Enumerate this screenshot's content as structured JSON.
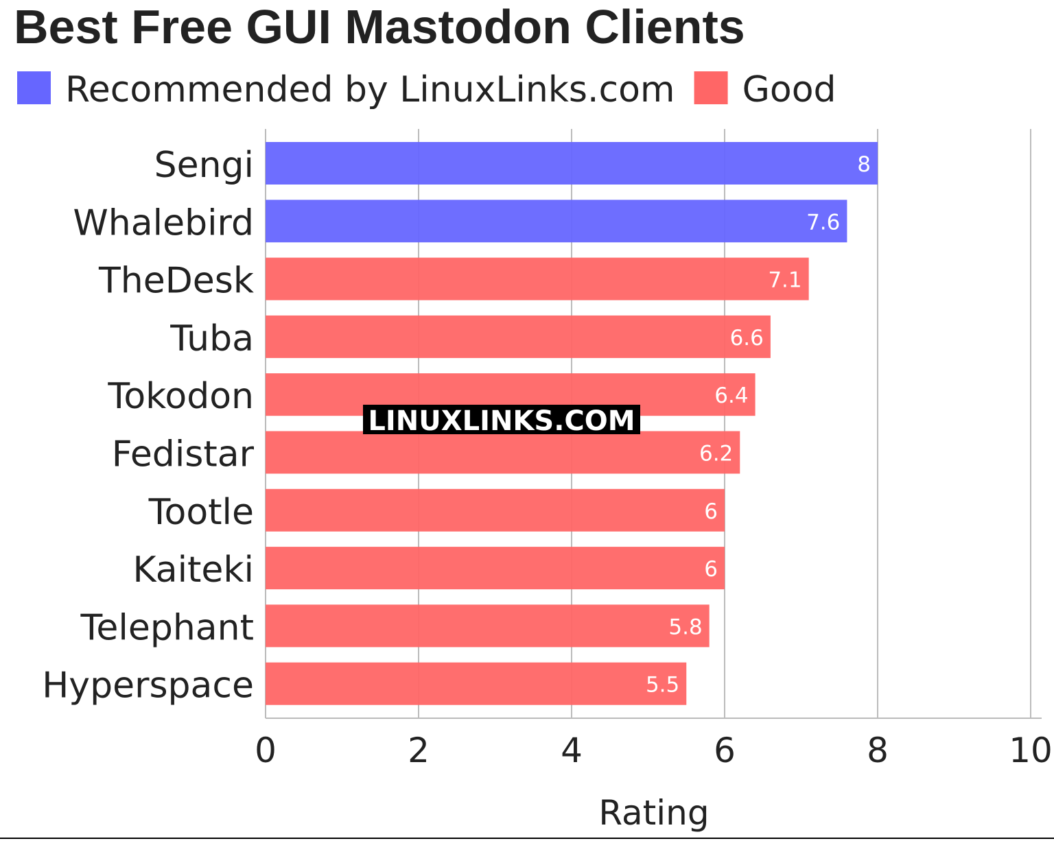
{
  "chart_data": {
    "type": "bar",
    "orientation": "horizontal",
    "title": "Best Free GUI Mastodon Clients",
    "xlabel": "Rating",
    "ylabel": "",
    "xlim": [
      0,
      10
    ],
    "xticks": [
      "0",
      "2",
      "4",
      "6",
      "8",
      "10"
    ],
    "grid": true,
    "legend": {
      "placement": "top-left",
      "entries": [
        {
          "label": "Recommended by LinuxLinks.com",
          "color": "#6666ff"
        },
        {
          "label": "Good",
          "color": "#ff6666"
        }
      ]
    },
    "categories": [
      "Sengi",
      "Whalebird",
      "TheDesk",
      "Tuba",
      "Tokodon",
      "Fedistar",
      "Tootle",
      "Kaiteki",
      "Telephant",
      "Hyperspace"
    ],
    "values": [
      8,
      7.6,
      7.1,
      6.6,
      6.4,
      6.2,
      6,
      6,
      5.8,
      5.5
    ],
    "value_labels": [
      "8",
      "7.6",
      "7.1",
      "6.6",
      "6.4",
      "6.2",
      "6",
      "6",
      "5.8",
      "5.5"
    ],
    "groups": [
      "Recommended by LinuxLinks.com",
      "Recommended by LinuxLinks.com",
      "Good",
      "Good",
      "Good",
      "Good",
      "Good",
      "Good",
      "Good",
      "Good"
    ]
  },
  "watermark": "LINUXLINKS.COM"
}
